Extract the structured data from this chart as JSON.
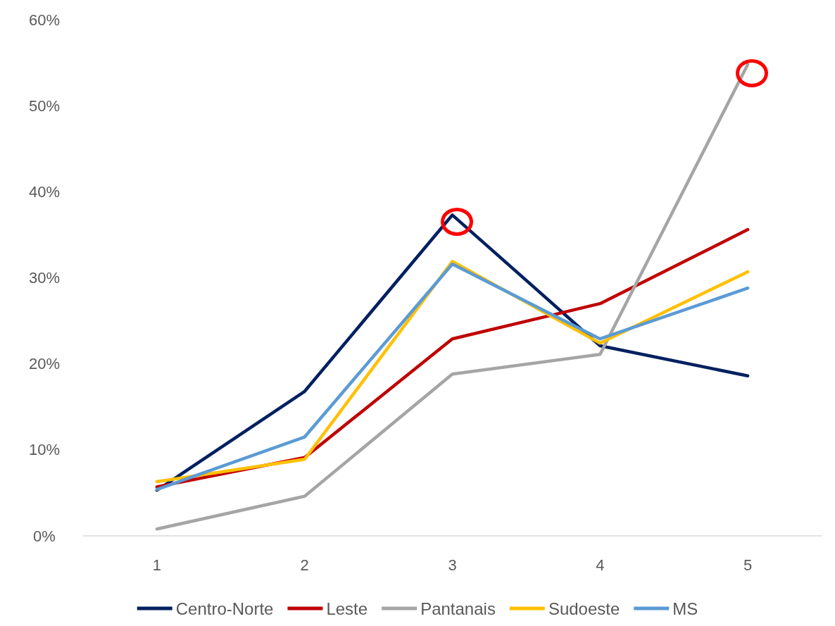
{
  "chart_data": {
    "type": "line",
    "categories": [
      "1",
      "2",
      "3",
      "4",
      "5"
    ],
    "series": [
      {
        "name": "Centro-Norte",
        "color": "#002060",
        "values": [
          5.3,
          16.8,
          37.3,
          22.1,
          18.6
        ]
      },
      {
        "name": "Leste",
        "color": "#c00000",
        "values": [
          5.7,
          9.1,
          22.9,
          27.0,
          35.6
        ]
      },
      {
        "name": "Pantanais",
        "color": "#a5a5a5",
        "values": [
          0.8,
          4.6,
          18.8,
          21.1,
          54.8
        ]
      },
      {
        "name": "Sudoeste",
        "color": "#ffc000",
        "values": [
          6.3,
          8.9,
          31.9,
          22.4,
          30.7
        ]
      },
      {
        "name": "MS",
        "color": "#5b9bd5",
        "values": [
          5.4,
          11.5,
          31.6,
          22.9,
          28.8
        ]
      }
    ],
    "ylim": [
      0,
      60
    ],
    "yticks": [
      {
        "value": 0,
        "label": "0%"
      },
      {
        "value": 10,
        "label": "10%"
      },
      {
        "value": 20,
        "label": "20%"
      },
      {
        "value": 30,
        "label": "30%"
      },
      {
        "value": 40,
        "label": "40%"
      },
      {
        "value": 50,
        "label": "50%"
      },
      {
        "value": 60,
        "label": "60%"
      }
    ],
    "grid": false,
    "legend": "bottom",
    "marker": "none",
    "line_style": "solid"
  }
}
